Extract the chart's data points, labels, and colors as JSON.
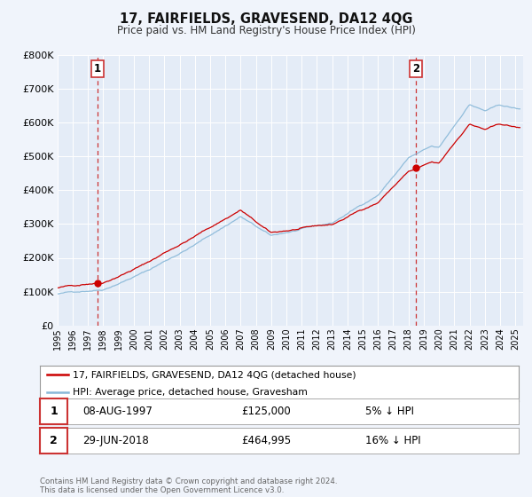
{
  "title": "17, FAIRFIELDS, GRAVESEND, DA12 4QG",
  "subtitle": "Price paid vs. HM Land Registry's House Price Index (HPI)",
  "legend_label_red": "17, FAIRFIELDS, GRAVESEND, DA12 4QG (detached house)",
  "legend_label_blue": "HPI: Average price, detached house, Gravesham",
  "sale1_label": "1",
  "sale1_date": "08-AUG-1997",
  "sale1_price": "£125,000",
  "sale1_note": "5% ↓ HPI",
  "sale1_x": 1997.6,
  "sale1_y": 125000,
  "sale2_label": "2",
  "sale2_date": "29-JUN-2018",
  "sale2_price": "£464,995",
  "sale2_note": "16% ↓ HPI",
  "sale2_x": 2018.5,
  "sale2_y": 464995,
  "vline1_x": 1997.6,
  "vline2_x": 2018.5,
  "footer_line1": "Contains HM Land Registry data © Crown copyright and database right 2024.",
  "footer_line2": "This data is licensed under the Open Government Licence v3.0.",
  "bg_color": "#f0f4fb",
  "plot_bg_color": "#e4ecf7",
  "red_color": "#cc0000",
  "blue_color": "#88b8d8",
  "grid_color": "#ffffff",
  "vline_color": "#cc3333",
  "ylim": [
    0,
    800000
  ],
  "xlim_min": 1995.0,
  "xlim_max": 2025.5,
  "yticks": [
    0,
    100000,
    200000,
    300000,
    400000,
    500000,
    600000,
    700000,
    800000
  ],
  "ytick_labels": [
    "£0",
    "£100K",
    "£200K",
    "£300K",
    "£400K",
    "£500K",
    "£600K",
    "£700K",
    "£800K"
  ]
}
